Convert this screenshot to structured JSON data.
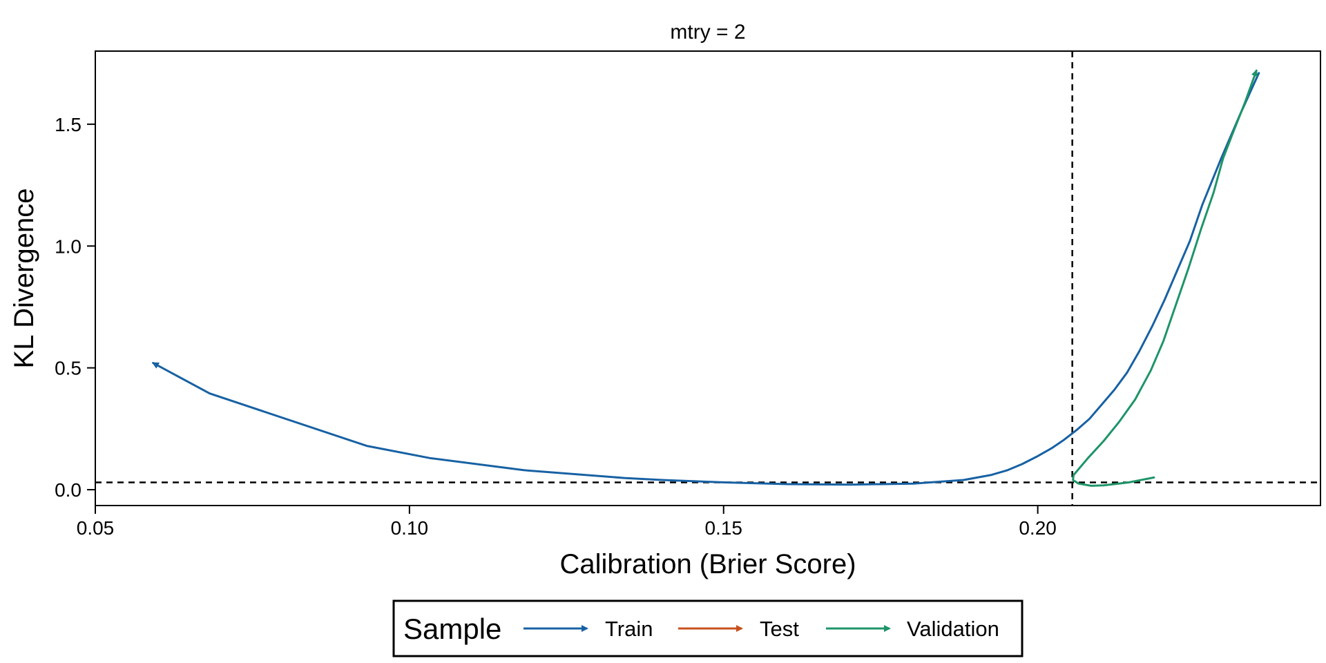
{
  "chart_data": {
    "type": "line",
    "title": "mtry = 2",
    "xlabel": "Calibration (Brier Score)",
    "ylabel": "KL Divergence",
    "xlim": [
      0.05,
      0.245
    ],
    "ylim": [
      -0.065,
      1.8
    ],
    "x_ticks": [
      0.05,
      0.1,
      0.15,
      0.2
    ],
    "x_tick_labels": [
      "0.05",
      "0.10",
      "0.15",
      "0.20"
    ],
    "y_ticks": [
      0.0,
      0.5,
      1.0,
      1.5
    ],
    "y_tick_labels": [
      "0.0",
      "0.5",
      "1.0",
      "1.5"
    ],
    "grid": false,
    "reference_lines": {
      "vertical_x": 0.2055,
      "horizontal_y": 0.03,
      "style": "dashed"
    },
    "legend": {
      "title": "Sample",
      "placement": "bottom",
      "entries": [
        {
          "name": "Train",
          "color": "#1761A3"
        },
        {
          "name": "Test",
          "color": "#C8501E"
        },
        {
          "name": "Validation",
          "color": "#1E9468"
        }
      ]
    },
    "series": [
      {
        "name": "Train",
        "color": "#1761A3",
        "arrow_at_end": true,
        "x": [
          0.2352,
          0.2322,
          0.2292,
          0.2262,
          0.2242,
          0.2222,
          0.2202,
          0.2182,
          0.2162,
          0.2142,
          0.2122,
          0.2102,
          0.2082,
          0.2062,
          0.2042,
          0.2022,
          0.1998,
          0.1975,
          0.1952,
          0.1925,
          0.1882,
          0.1802,
          0.1702,
          0.1602,
          0.1502,
          0.1402,
          0.1342,
          0.1182,
          0.1032,
          0.0932,
          0.0682,
          0.0592
        ],
        "y": [
          1.71,
          1.54,
          1.36,
          1.17,
          1.02,
          0.9,
          0.78,
          0.67,
          0.57,
          0.48,
          0.41,
          0.35,
          0.29,
          0.245,
          0.205,
          0.17,
          0.135,
          0.105,
          0.08,
          0.06,
          0.04,
          0.025,
          0.021,
          0.023,
          0.03,
          0.04,
          0.048,
          0.08,
          0.13,
          0.18,
          0.395,
          0.52
        ]
      },
      {
        "name": "Validation",
        "color": "#1E9468",
        "arrow_at_end": true,
        "x": [
          0.2185,
          0.2145,
          0.2105,
          0.2085,
          0.2065,
          0.2056,
          0.2057,
          0.208,
          0.2105,
          0.213,
          0.2155,
          0.218,
          0.22,
          0.222,
          0.224,
          0.226,
          0.228,
          0.2295,
          0.231,
          0.233,
          0.2348
        ],
        "y": [
          0.05,
          0.03,
          0.018,
          0.016,
          0.025,
          0.04,
          0.06,
          0.13,
          0.2,
          0.28,
          0.37,
          0.49,
          0.61,
          0.76,
          0.91,
          1.07,
          1.22,
          1.36,
          1.46,
          1.59,
          1.72
        ]
      },
      {
        "name": "Test",
        "color": "#C8501E",
        "arrow_at_end": true,
        "x": [],
        "y": []
      }
    ]
  }
}
